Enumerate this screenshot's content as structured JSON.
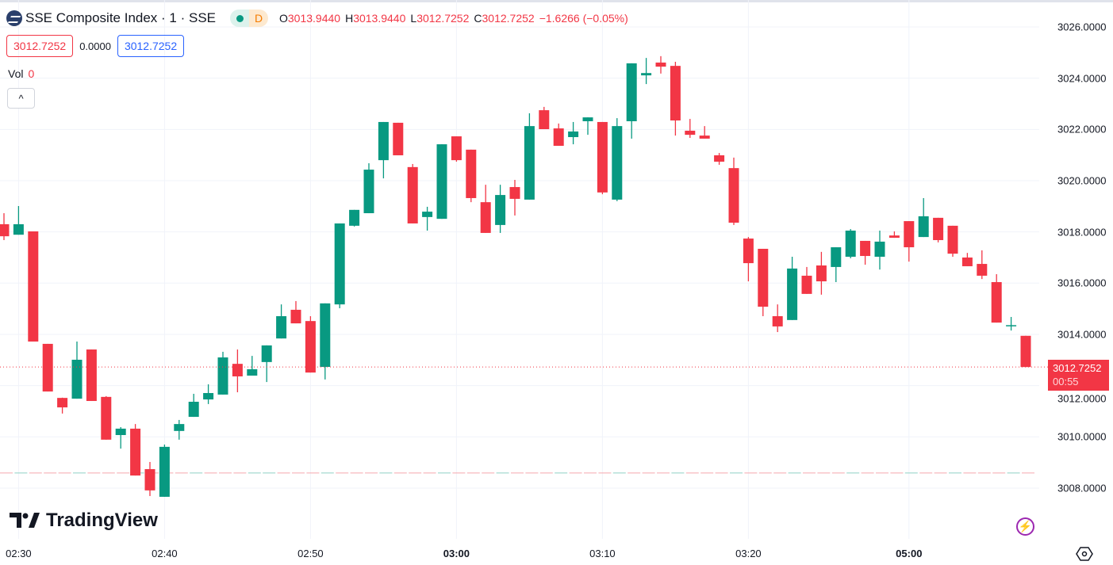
{
  "header": {
    "title": "SSE Composite Index · 1 · SSE",
    "status_badge": "D",
    "ohlc": {
      "o_label": "O",
      "o": "3013.9440",
      "h_label": "H",
      "h": "3013.9440",
      "l_label": "L",
      "l": "3012.7252",
      "c_label": "C",
      "c": "3012.7252",
      "change": "−1.6266 (−0.05%)"
    },
    "sell_price": "3012.7252",
    "spread": "0.0000",
    "buy_price": "3012.7252",
    "vol_label": "Vol",
    "vol_value": "0",
    "collapse_icon": "^"
  },
  "price_tag": {
    "price": "3012.7252",
    "countdown": "00:55"
  },
  "branding": "TradingView",
  "colors": {
    "up": "#089981",
    "down": "#f23645",
    "grid": "#f0f3fa"
  },
  "chart_data": {
    "type": "candlestick",
    "title": "SSE Composite Index · 1 · SSE",
    "ylim": [
      3006.5,
      3026.9
    ],
    "y_ticks": [
      "3026.0000",
      "3024.0000",
      "3022.0000",
      "3020.0000",
      "3018.0000",
      "3016.0000",
      "3014.0000",
      "3012.0000",
      "3010.0000",
      "3008.0000"
    ],
    "y_tick_values": [
      3026,
      3024,
      3022,
      3020,
      3018,
      3016,
      3014,
      3012,
      3010,
      3008
    ],
    "x_ticks": [
      {
        "label": "02:30",
        "index": 1,
        "bold": false
      },
      {
        "label": "02:40",
        "index": 11,
        "bold": false
      },
      {
        "label": "02:50",
        "index": 21,
        "bold": false
      },
      {
        "label": "03:00",
        "index": 31,
        "bold": true
      },
      {
        "label": "03:10",
        "index": 41,
        "bold": false
      },
      {
        "label": "03:20",
        "index": 51,
        "bold": false
      },
      {
        "label": "05:00",
        "index": 62,
        "bold": true
      }
    ],
    "last_price": 3012.7252,
    "reference_line": 3008.59,
    "candles_ohlc": [
      [
        3018.3,
        3018.73,
        3017.68,
        3017.83
      ],
      [
        3017.89,
        3019.01,
        3017.89,
        3018.3
      ],
      [
        3018.02,
        3018.02,
        3013.72,
        3013.72
      ],
      [
        3013.63,
        3013.63,
        3011.77,
        3011.77
      ],
      [
        3011.52,
        3011.53,
        3010.91,
        3011.15
      ],
      [
        3011.49,
        3013.72,
        3011.49,
        3013.01
      ],
      [
        3013.41,
        3013.41,
        3011.4,
        3011.4
      ],
      [
        3011.56,
        3011.59,
        3009.89,
        3009.89
      ],
      [
        3010.07,
        3010.38,
        3009.54,
        3010.32
      ],
      [
        3010.32,
        3010.5,
        3008.49,
        3008.49
      ],
      [
        3008.74,
        3009.02,
        3007.69,
        3007.91
      ],
      [
        3007.66,
        3009.7,
        3007.66,
        3009.61
      ],
      [
        3010.23,
        3010.66,
        3009.89,
        3010.5
      ],
      [
        3010.78,
        3011.68,
        3010.78,
        3011.37
      ],
      [
        3011.46,
        3012.05,
        3011.28,
        3011.71
      ],
      [
        3011.65,
        3013.32,
        3011.65,
        3013.1
      ],
      [
        3012.85,
        3013.41,
        3011.74,
        3012.36
      ],
      [
        3012.39,
        3013.16,
        3012.39,
        3012.64
      ],
      [
        3012.92,
        3013.57,
        3012.14,
        3013.57
      ],
      [
        3013.84,
        3015.17,
        3013.84,
        3014.71
      ],
      [
        3014.96,
        3015.3,
        3014.43,
        3014.43
      ],
      [
        3014.52,
        3014.71,
        3012.51,
        3012.51
      ],
      [
        3012.73,
        3015.21,
        3012.24,
        3015.21
      ],
      [
        3015.17,
        3018.33,
        3015.02,
        3018.33
      ],
      [
        3018.24,
        3018.86,
        3018.21,
        3018.86
      ],
      [
        3018.73,
        3020.68,
        3018.73,
        3020.43
      ],
      [
        3020.8,
        3022.29,
        3020.09,
        3022.29
      ],
      [
        3022.26,
        3022.26,
        3020.99,
        3020.99
      ],
      [
        3020.53,
        3020.65,
        3018.33,
        3018.33
      ],
      [
        3018.58,
        3018.98,
        3018.05,
        3018.79
      ],
      [
        3018.51,
        3021.42,
        3018.51,
        3021.42
      ],
      [
        3021.73,
        3021.73,
        3020.74,
        3020.8
      ],
      [
        3021.21,
        3021.21,
        3019.16,
        3019.32
      ],
      [
        3019.16,
        3019.84,
        3017.96,
        3017.96
      ],
      [
        3018.27,
        3019.84,
        3017.96,
        3019.44
      ],
      [
        3019.75,
        3020.03,
        3018.64,
        3019.29
      ],
      [
        3019.26,
        3022.63,
        3019.26,
        3022.13
      ],
      [
        3022.75,
        3022.88,
        3022.01,
        3022.01
      ],
      [
        3022.04,
        3022.23,
        3021.36,
        3021.36
      ],
      [
        3021.7,
        3022.29,
        3021.42,
        3021.92
      ],
      [
        3022.32,
        3022.47,
        3021.79,
        3022.47
      ],
      [
        3022.29,
        3022.29,
        3019.47,
        3019.54
      ],
      [
        3019.26,
        3022.44,
        3019.2,
        3022.13
      ],
      [
        3022.32,
        3024.58,
        3021.64,
        3024.58
      ],
      [
        3024.11,
        3024.79,
        3023.77,
        3024.2
      ],
      [
        3024.61,
        3024.86,
        3024.18,
        3024.45
      ],
      [
        3024.48,
        3024.64,
        3021.76,
        3022.35
      ],
      [
        3021.95,
        3022.41,
        3021.67,
        3021.79
      ],
      [
        3021.76,
        3022.13,
        3021.64,
        3021.64
      ],
      [
        3020.99,
        3021.08,
        3020.62,
        3020.74
      ],
      [
        3020.49,
        3020.9,
        3018.27,
        3018.36
      ],
      [
        3017.74,
        3017.8,
        3016.07,
        3016.78
      ],
      [
        3017.34,
        3017.34,
        3014.71,
        3015.08
      ],
      [
        3014.71,
        3015.17,
        3014.09,
        3014.31
      ],
      [
        3014.56,
        3017.03,
        3014.56,
        3016.57
      ],
      [
        3016.29,
        3016.63,
        3015.58,
        3015.58
      ],
      [
        3016.69,
        3017.22,
        3015.55,
        3016.07
      ],
      [
        3016.63,
        3017.4,
        3016.04,
        3017.4
      ],
      [
        3017.03,
        3018.11,
        3016.97,
        3018.05
      ],
      [
        3017.65,
        3017.65,
        3016.72,
        3017.06
      ],
      [
        3017.03,
        3018.05,
        3016.53,
        3017.62
      ],
      [
        3017.86,
        3018.02,
        3017.77,
        3017.77
      ],
      [
        3018.42,
        3018.42,
        3016.84,
        3017.4
      ],
      [
        3017.8,
        3019.32,
        3017.8,
        3018.61
      ],
      [
        3018.55,
        3018.55,
        3017.59,
        3017.68
      ],
      [
        3018.24,
        3018.24,
        3017.03,
        3017.15
      ],
      [
        3017.0,
        3017.18,
        3016.66,
        3016.66
      ],
      [
        3016.75,
        3017.28,
        3016.16,
        3016.29
      ],
      [
        3016.04,
        3016.35,
        3014.46,
        3014.46
      ],
      [
        3014.34,
        3014.68,
        3014.15,
        3014.36
      ],
      [
        3013.944,
        3013.944,
        3012.7252,
        3012.7252
      ]
    ]
  }
}
